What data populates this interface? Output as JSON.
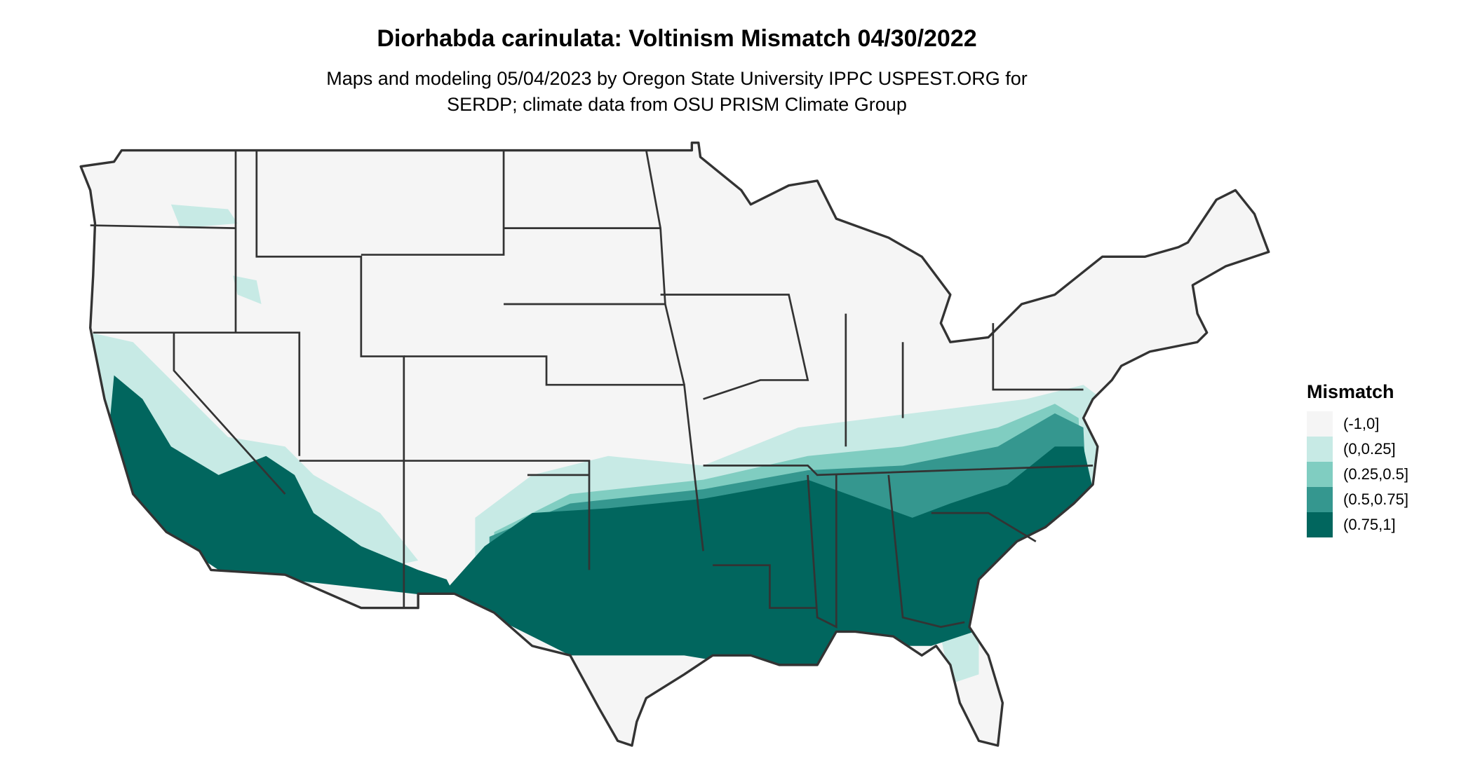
{
  "title": "Diorhabda carinulata: Voltinism Mismatch 04/30/2022",
  "subtitle": [
    "Maps and modeling 05/04/2023 by Oregon State University IPPC USPEST.ORG for",
    "SERDP; climate data from OSU PRISM Climate Group"
  ],
  "legend": {
    "title": "Mismatch",
    "items": [
      {
        "label": "(-1,0]",
        "color": "#f5f5f5"
      },
      {
        "label": "(0,0.25]",
        "color": "#c7eae5"
      },
      {
        "label": "(0.25,0.5]",
        "color": "#80cdc1"
      },
      {
        "label": "(0.5,0.75]",
        "color": "#35978f"
      },
      {
        "label": "(0.75,1]",
        "color": "#01665e"
      }
    ]
  },
  "map": {
    "region": "Contiguous United States",
    "border_color": "#333333"
  }
}
